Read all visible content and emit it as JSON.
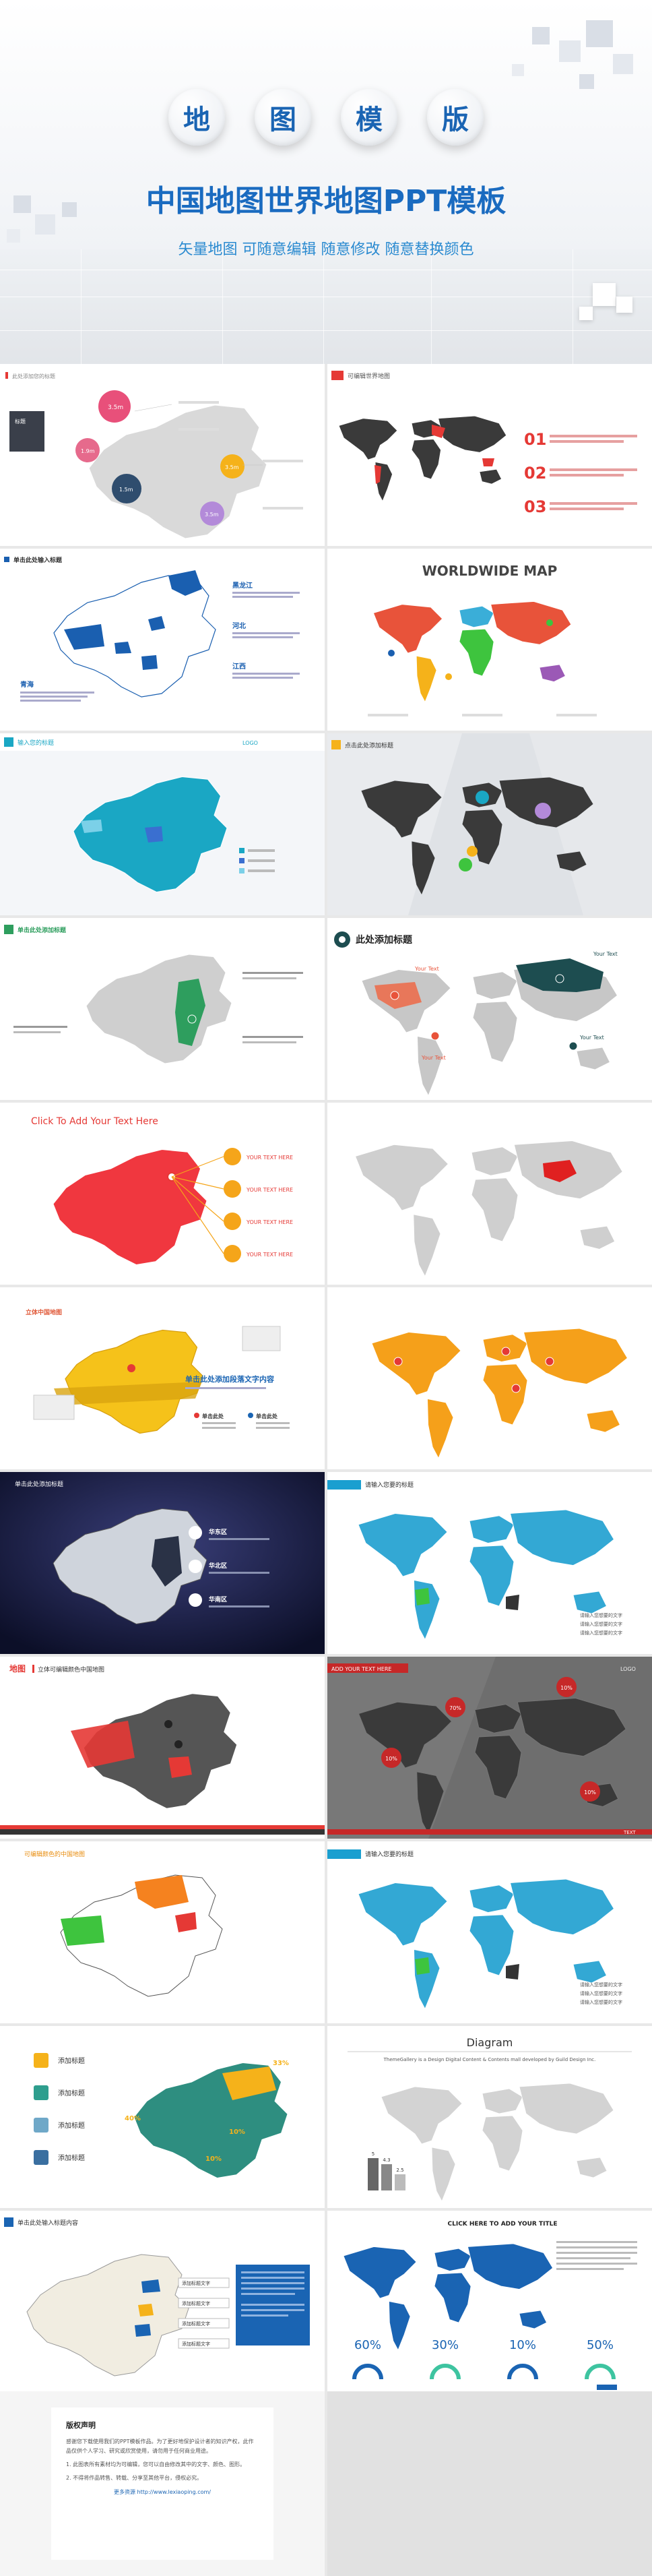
{
  "hero": {
    "chars": [
      "地",
      "图",
      "模",
      "版"
    ],
    "title": "中国地图世界地图PPT模板",
    "subtitle": "矢量地图 可随意编辑 随意修改 随意替换颜色"
  },
  "colors": {
    "brand_blue": "#1a6bc0",
    "red": "#e53935",
    "orange": "#f59c1a",
    "teal": "#1aa7c4",
    "dark": "#3a3a3a",
    "green": "#3ec43e"
  },
  "slides": {
    "s1": {
      "title": "此处添加您的标题",
      "bubbles": [
        "3.5m",
        "1.9m",
        "1.5m",
        "3.5m",
        "3.5m"
      ],
      "legend_label": "标题"
    },
    "s2": {
      "title": "可编辑世界地图",
      "nums": [
        "01",
        "02",
        "03"
      ]
    },
    "s3": {
      "title": "单击此处输入标题",
      "labels": [
        "黑龙江",
        "河北",
        "江西",
        "青海"
      ]
    },
    "s4": {
      "title": "WORLDWIDE MAP"
    },
    "s5": {
      "title": "输入您的标题",
      "logo": "LOGO"
    },
    "s6": {
      "title": "点击此处添加标题"
    },
    "s7": {
      "title": "单击此处添加标题"
    },
    "s8": {
      "title": "此处添加标题",
      "callouts": [
        "Your Text",
        "Your Text",
        "Your Text",
        "Your Text"
      ]
    },
    "s9": {
      "title": "Click To Add Your Text Here",
      "items": [
        "YOUR TEXT HERE",
        "YOUR TEXT HERE",
        "YOUR TEXT HERE",
        "YOUR TEXT HERE"
      ]
    },
    "s11": {
      "title": "立体中国地图",
      "headline": "单击此处添加段落文字内容",
      "tags": [
        "单击此处",
        "单击此处"
      ]
    },
    "s13": {
      "title": "单击此处添加标题",
      "labels": [
        "华东区",
        "华北区",
        "华南区"
      ]
    },
    "s14": {
      "title": "请输入您要的标题",
      "notes": [
        "请输入您想要的文字",
        "请输入您想要的文字",
        "请输入您想要的文字"
      ]
    },
    "s15": {
      "title": "地图",
      "subtitle": "立体可编辑颜色中国地图"
    },
    "s16": {
      "title": "ADD YOUR TEXT HERE",
      "logo": "LOGO",
      "pcts": [
        "70%",
        "10%",
        "10%",
        "10%"
      ],
      "footer": "TEXT"
    },
    "s17": {
      "title": "可编辑颜色的中国地图"
    },
    "s18": {
      "title": "请输入您要的标题",
      "notes": [
        "请输入您想要的文字",
        "请输入您想要的文字",
        "请输入您想要的文字"
      ]
    },
    "s19": {
      "items": [
        "添加标题",
        "添加标题",
        "添加标题",
        "添加标题"
      ],
      "pcts": [
        "33%",
        "40%",
        "10%",
        "10%"
      ]
    },
    "s20": {
      "title": "Diagram",
      "sub": "ThemeGallery is a Design Digital Content & Contents mall developed by Guild Design Inc.",
      "bars": [
        "5",
        "4.3",
        "2.5"
      ]
    },
    "s21": {
      "title": "单击此处输入标题内容",
      "boxes": [
        "添加标题文字",
        "添加标题文字",
        "添加标题文字",
        "添加标题文字"
      ]
    },
    "s22": {
      "title": "CLICK HERE TO ADD YOUR TITLE",
      "pcts": [
        "60%",
        "30%",
        "10%",
        "50%"
      ]
    }
  },
  "notice": {
    "heading": "版权声明",
    "p1": "感谢您下载使用我们的PPT模板作品。为了更好地保护设计者的知识产权，此作品仅供个人学习、研究或欣赏使用，请勿用于任何商业用途。",
    "p2": "1. 此图表所有素材均为可编辑，您可以自由修改其中的文字、颜色、图形。",
    "p3": "2. 不得将作品转售、转载、分享至其他平台，侵权必究。",
    "link": "更多资源 http://www.lexiaoping.com/"
  }
}
